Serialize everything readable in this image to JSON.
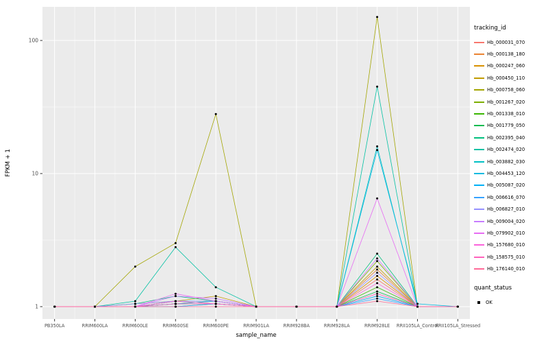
{
  "figure": {
    "background": "#FFFFFF",
    "panel_bg": "#EBEBEB",
    "grid_major": "#FFFFFF",
    "grid_minor": "#F7F7F7",
    "tick_color": "#333333",
    "tick_label_color": "#4D4D4D",
    "axis_title_color": "#000000",
    "point_color": "#000000"
  },
  "legend": {
    "tracking_title": "tracking_id",
    "quant_title": "quant_status",
    "quant_items": [
      {
        "label": "OK"
      }
    ]
  },
  "chart_data": {
    "type": "line",
    "title": "",
    "xlabel": "sample_name",
    "ylabel": "FPKM + 1",
    "yscale": "log10",
    "ylim": [
      1,
      160
    ],
    "y_ticks": [
      1,
      10,
      100
    ],
    "grid": true,
    "legend_position": "right",
    "categories": [
      "PB350LA",
      "RRIM600LA",
      "RRIM600LE",
      "RRIM600SE",
      "RRIM600PE",
      "RRIM901LA",
      "RRIM928BA",
      "RRIM928LA",
      "RRIM928LE",
      "RRII105LA_Control",
      "RRII105LA_Stressed"
    ],
    "series": [
      {
        "name": "Hb_000031_070",
        "color": "#F8766D",
        "values": [
          1,
          1,
          1,
          1.05,
          1.05,
          1,
          1,
          1,
          1.6,
          1,
          1
        ]
      },
      {
        "name": "Hb_000138_180",
        "color": "#EA8331",
        "values": [
          1,
          1,
          1,
          1.1,
          1.05,
          1,
          1,
          1,
          1.9,
          1,
          1
        ]
      },
      {
        "name": "Hb_000247_060",
        "color": "#D89000",
        "values": [
          1,
          1,
          1,
          1.05,
          1.1,
          1,
          1,
          1,
          1.7,
          1,
          1
        ]
      },
      {
        "name": "Hb_000450_110",
        "color": "#C09B00",
        "values": [
          1,
          1,
          1.05,
          1.1,
          1.2,
          1,
          1,
          1,
          2.0,
          1,
          1
        ]
      },
      {
        "name": "Hb_000758_060",
        "color": "#A3A500",
        "values": [
          1,
          1,
          2,
          3,
          28,
          1,
          1,
          1,
          150,
          1,
          1
        ]
      },
      {
        "name": "Hb_001267_020",
        "color": "#7CAE00",
        "values": [
          1,
          1,
          1,
          1.1,
          1.1,
          1,
          1,
          1,
          2.2,
          1,
          1
        ]
      },
      {
        "name": "Hb_001338_010",
        "color": "#39B600",
        "values": [
          1,
          1,
          1,
          1.05,
          1.05,
          1,
          1,
          1,
          1.4,
          1,
          1
        ]
      },
      {
        "name": "Hb_001779_050",
        "color": "#00BB4E",
        "values": [
          1,
          1,
          1,
          1,
          1.05,
          1,
          1,
          1,
          1.3,
          1,
          1
        ]
      },
      {
        "name": "Hb_002395_040",
        "color": "#00BF7D",
        "values": [
          1,
          1,
          1.05,
          1.2,
          1.1,
          1,
          1,
          1,
          2.5,
          1,
          1
        ]
      },
      {
        "name": "Hb_002474_020",
        "color": "#00C1A3",
        "values": [
          1,
          1,
          1.1,
          2.8,
          1.4,
          1,
          1,
          1,
          45,
          1,
          1
        ]
      },
      {
        "name": "Hb_003882_030",
        "color": "#00BFC4",
        "values": [
          1,
          1,
          1,
          1.1,
          1.1,
          1,
          1,
          1,
          16,
          1,
          1
        ]
      },
      {
        "name": "Hb_004453_120",
        "color": "#00BAE0",
        "values": [
          1,
          1,
          1,
          1.05,
          1.1,
          1,
          1,
          1,
          15,
          1.05,
          1
        ]
      },
      {
        "name": "Hb_005087_020",
        "color": "#00B0F6",
        "values": [
          1,
          1,
          1,
          1.05,
          1.05,
          1,
          1,
          1,
          1.2,
          1,
          1
        ]
      },
      {
        "name": "Hb_006616_070",
        "color": "#35A2FF",
        "values": [
          1,
          1,
          1,
          1,
          1.05,
          1,
          1,
          1,
          1.15,
          1,
          1
        ]
      },
      {
        "name": "Hb_006827_010",
        "color": "#9590FF",
        "values": [
          1,
          1,
          1.05,
          1.1,
          1.1,
          1,
          1,
          1,
          1.8,
          1,
          1
        ]
      },
      {
        "name": "Hb_009004_020",
        "color": "#C77CFF",
        "values": [
          1,
          1,
          1,
          1.2,
          1.15,
          1,
          1,
          1,
          2.3,
          1,
          1
        ]
      },
      {
        "name": "Hb_079902_010",
        "color": "#E76BF3",
        "values": [
          1,
          1,
          1,
          1.25,
          1.1,
          1,
          1,
          1,
          6.5,
          1,
          1
        ]
      },
      {
        "name": "Hb_157680_010",
        "color": "#FA62DB",
        "values": [
          1,
          1,
          1,
          1.1,
          1.05,
          1,
          1,
          1,
          1.5,
          1,
          1
        ]
      },
      {
        "name": "Hb_158575_010",
        "color": "#FF62BC",
        "values": [
          1,
          1,
          1,
          1.05,
          1.05,
          1,
          1,
          1,
          1.25,
          1,
          1
        ]
      },
      {
        "name": "Hb_176140_010",
        "color": "#FF6A98",
        "values": [
          1,
          1,
          1,
          1,
          1,
          1,
          1,
          1,
          1.1,
          1,
          1
        ]
      }
    ]
  }
}
